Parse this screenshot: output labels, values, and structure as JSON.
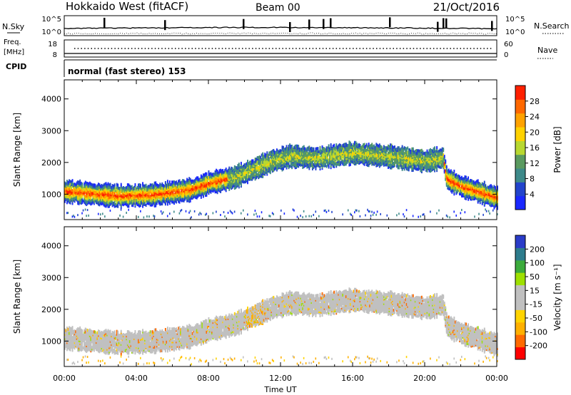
{
  "header": {
    "station": "Hokkaido West (fitACF)",
    "beam": "Beam 00",
    "date": "21/Oct/2016"
  },
  "top_panels": {
    "noise_left_label": "N.Sky",
    "noise_right_label": "N.Search",
    "noise_ticks_left": [
      "10^5",
      "10^0"
    ],
    "noise_ticks_right": [
      "10^5",
      "10^0"
    ],
    "freq_label_1": "Freq.",
    "freq_label_2": "[MHz]",
    "freq_ticks": [
      "18",
      "8"
    ],
    "nave_label": "Nave",
    "nave_ticks": [
      "60",
      "0"
    ],
    "cpid_label": "CPID",
    "cpid_text": "normal (fast stereo) 153"
  },
  "colors": {
    "power_scale": [
      "#1a28ff",
      "#2244cc",
      "#3e8a8a",
      "#5a9a60",
      "#b8d830",
      "#ffd200",
      "#ffa200",
      "#ff6800",
      "#ff2000"
    ],
    "velocity_scale": [
      "#ff0000",
      "#ff6a00",
      "#ffb000",
      "#ffd400",
      "#c0c0c0",
      "#c0c0c0",
      "#9ee000",
      "#3cab3c",
      "#2d7c8c",
      "#2a3cc8"
    ]
  },
  "chart_data": [
    {
      "type": "heatmap",
      "name": "Power",
      "xlabel": "",
      "ylabel": "Slant Range [km]",
      "colorbar_label": "Power [dB]",
      "colorbar_ticks": [
        "28",
        "24",
        "20",
        "16",
        "12",
        "8",
        "4"
      ],
      "colorbar_range": [
        0,
        32
      ],
      "x_range_hours": [
        0,
        24
      ],
      "yticks": [
        1000,
        2000,
        3000,
        4000
      ],
      "ylim": [
        200,
        4600
      ],
      "scatter_bands": [
        {
          "t": [
            0,
            3,
            5,
            7,
            8,
            9.5,
            10.5,
            11.5,
            12.5,
            14,
            16,
            18,
            20,
            21,
            21.2,
            22,
            24
          ],
          "r": [
            1100,
            950,
            1000,
            1150,
            1350,
            1550,
            1800,
            2050,
            2200,
            2150,
            2300,
            2200,
            2050,
            2150,
            1500,
            1250,
            900
          ]
        }
      ]
    },
    {
      "type": "heatmap",
      "name": "Velocity",
      "xlabel": "Time UT",
      "ylabel": "Slant Range [km]",
      "colorbar_label": "Velocity [m s⁻¹]",
      "colorbar_ticks": [
        "200",
        "100",
        "50",
        "15",
        "-15",
        "-50",
        "-100",
        "-200"
      ],
      "colorbar_range": [
        -250,
        250
      ],
      "xticks": [
        "00:00",
        "04:00",
        "08:00",
        "12:00",
        "16:00",
        "20:00",
        "00:00"
      ],
      "yticks": [
        1000,
        2000,
        3000,
        4000
      ],
      "ylim": [
        200,
        4600
      ]
    }
  ],
  "axis_units": {
    "y_unit_left": "Slant Range [km]",
    "colorbar_power": "Power [dB]",
    "colorbar_velocity": "Velocity [m s⁻¹]"
  }
}
